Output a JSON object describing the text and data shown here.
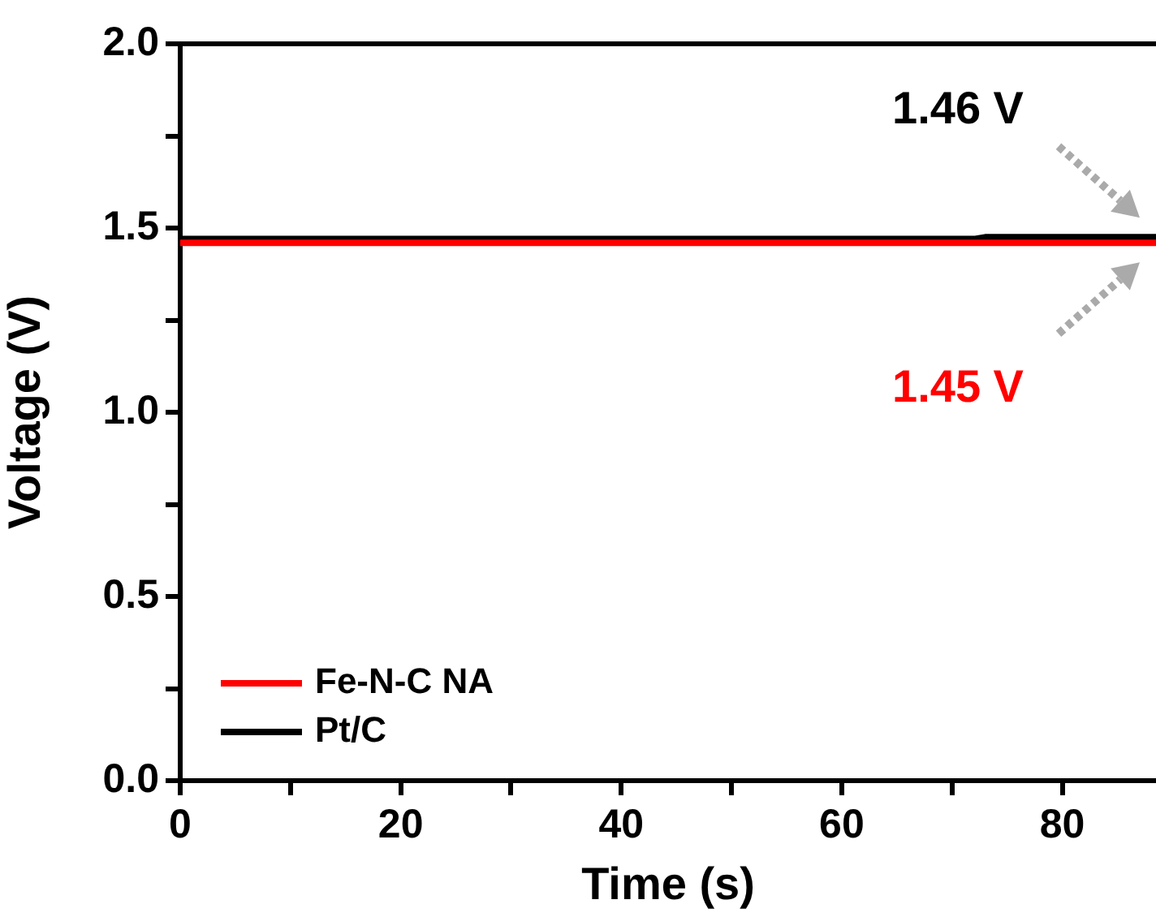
{
  "chart_data": {
    "type": "line",
    "xlabel": "Time (s)",
    "ylabel": "Voltage (V)",
    "xlim": [
      0,
      88.5
    ],
    "xticks": [
      0,
      {
        "value": 10,
        "label": null
      },
      20,
      {
        "value": 30,
        "label": null
      },
      40,
      {
        "value": 50,
        "label": null
      },
      60,
      {
        "value": 70,
        "label": null
      },
      80
    ],
    "ylim": [
      0,
      2
    ],
    "yticks": [
      {
        "value": 0,
        "label": "0.0"
      },
      {
        "value": 0.25,
        "label": null
      },
      {
        "value": 0.5,
        "label": "0.5"
      },
      {
        "value": 0.75,
        "label": null
      },
      {
        "value": 1,
        "label": "1.0"
      },
      {
        "value": 1.25,
        "label": null
      },
      {
        "value": 1.5,
        "label": "1.5"
      },
      {
        "value": 1.75,
        "label": null
      },
      {
        "value": 2,
        "label": "2.0"
      }
    ],
    "series": [
      {
        "name": "Fe-N-C NA",
        "color": "#ff0000",
        "x": [
          0,
          88.5
        ],
        "values": [
          1.46,
          1.46
        ]
      },
      {
        "name": "Pt/C",
        "color": "#000000",
        "x": [
          0,
          72,
          73,
          88.5
        ],
        "values": [
          1.47,
          1.47,
          1.475,
          1.475
        ]
      }
    ],
    "annotations": [
      "1.45 V",
      "1.46 V"
    ],
    "legend": "bottom left",
    "grid": false,
    "marker": "none",
    "line_style": "solid"
  }
}
